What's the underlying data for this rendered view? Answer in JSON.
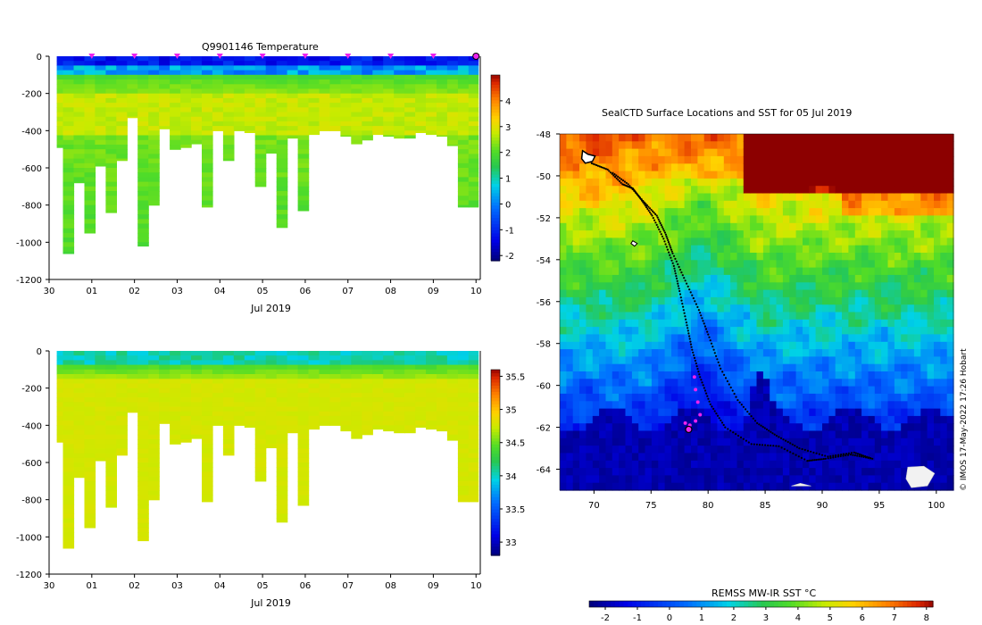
{
  "chart_data": [
    {
      "type": "heatmap",
      "title": "Q9901146  Temperature",
      "xlabel": "Jul 2019",
      "ylabel": "",
      "x_ticks": [
        "30",
        "01",
        "02",
        "03",
        "04",
        "05",
        "06",
        "07",
        "08",
        "09",
        "10"
      ],
      "x_range_days": [
        0,
        10.1
      ],
      "y_ticks": [
        "0",
        "-200",
        "-400",
        "-600",
        "-800",
        "-1000",
        "-1200"
      ],
      "ylim": [
        -1200,
        0
      ],
      "profile_times_days": [
        0.2,
        0.45,
        0.7,
        0.95,
        1.2,
        1.45,
        1.7,
        1.95,
        2.2,
        2.45,
        2.7,
        2.95,
        3.2,
        3.45,
        3.7,
        3.95,
        4.2,
        4.45,
        4.7,
        4.95,
        5.2,
        5.45,
        5.7,
        5.95,
        6.2,
        6.45,
        6.7,
        6.95,
        7.2,
        7.45,
        7.7,
        7.95,
        8.2,
        8.45,
        8.7,
        8.95,
        9.2,
        9.45,
        9.7,
        9.95
      ],
      "profile_max_depth_m": [
        490,
        1060,
        680,
        950,
        590,
        840,
        560,
        330,
        1020,
        800,
        390,
        500,
        490,
        470,
        810,
        400,
        560,
        400,
        410,
        700,
        520,
        920,
        440,
        830,
        420,
        400,
        400,
        430,
        470,
        450,
        420,
        430,
        440,
        440,
        410,
        420,
        430,
        480,
        810,
        810
      ],
      "surface_marker_days": [
        1,
        2,
        3,
        4,
        5,
        6,
        7,
        8,
        9,
        10
      ],
      "colorbar": {
        "label": "",
        "ticks": [
          "-2",
          "-1",
          "0",
          "1",
          "2",
          "3",
          "4"
        ],
        "range": [
          -2.2,
          5
        ]
      }
    },
    {
      "type": "heatmap",
      "title": "",
      "xlabel": "Jul 2019",
      "ylabel": "",
      "x_ticks": [
        "30",
        "01",
        "02",
        "03",
        "04",
        "05",
        "06",
        "07",
        "08",
        "09",
        "10"
      ],
      "y_ticks": [
        "0",
        "-200",
        "-400",
        "-600",
        "-800",
        "-1000",
        "-1200"
      ],
      "ylim": [
        -1200,
        0
      ],
      "colorbar": {
        "label": "",
        "ticks": [
          "33",
          "33.5",
          "34",
          "34.5",
          "35",
          "35.5"
        ],
        "range": [
          32.8,
          35.6
        ]
      }
    },
    {
      "type": "map",
      "title": "SealCTD Surface Locations and SST for 05 Jul 2019",
      "x_ticks": [
        "70",
        "75",
        "80",
        "85",
        "90",
        "95",
        "100"
      ],
      "xlim": [
        67,
        101.5
      ],
      "y_ticks": [
        "-48",
        "-50",
        "-52",
        "-54",
        "-56",
        "-58",
        "-60",
        "-62",
        "-64"
      ],
      "ylim": [
        -65,
        -48
      ],
      "track_start": [
        69.5,
        -49.3
      ],
      "latest_location": [
        78.3,
        -62.1
      ],
      "colorbar": {
        "label": "REMSS MW-IR SST °C",
        "ticks": [
          "-2",
          "-1",
          "0",
          "1",
          "2",
          "3",
          "4",
          "5",
          "6",
          "7",
          "8"
        ],
        "range": [
          -2.5,
          8.2
        ]
      }
    }
  ],
  "credit": "© IMOS 17-May-2022 17:26 Hobart"
}
